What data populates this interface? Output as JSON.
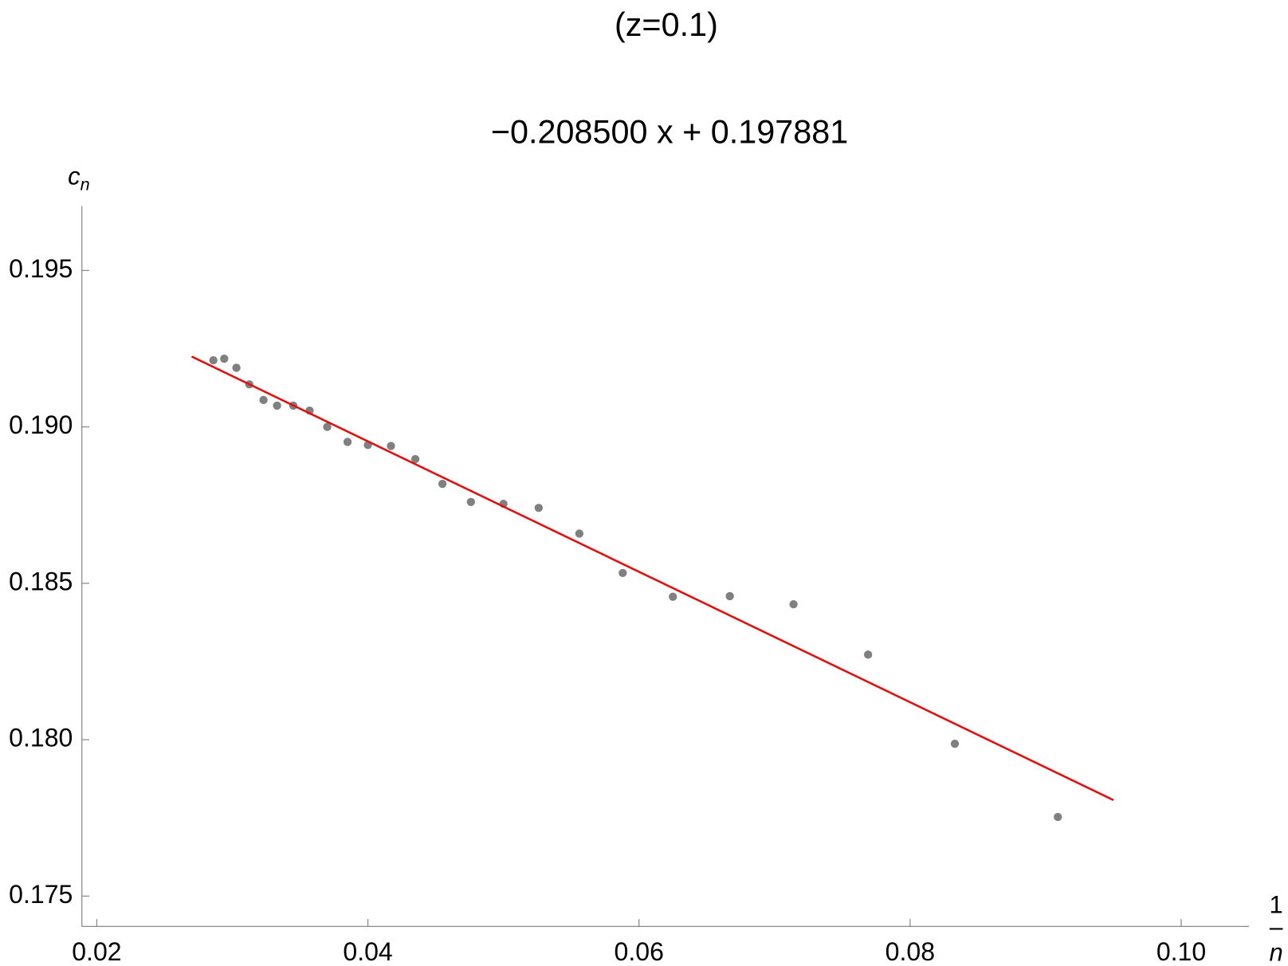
{
  "chart_data": {
    "type": "scatter",
    "title": "(z=0.1)",
    "subtitle": "−0.208500 x + 0.197881",
    "ylabel": {
      "base": "c",
      "sub": "n"
    },
    "xlabel": {
      "numerator": "1",
      "denominator": "n"
    },
    "xlim": [
      0.0189,
      0.105
    ],
    "ylim": [
      0.17403,
      0.19706
    ],
    "xticks": [
      0.02,
      0.04,
      0.06,
      0.08,
      {
        "value": 0.1,
        "label": "0.10"
      }
    ],
    "yticks": [
      0.175,
      {
        "value": 0.18,
        "label": "0.180"
      },
      0.185,
      {
        "value": 0.19,
        "label": "0.190"
      },
      0.195
    ],
    "points": {
      "color": "#808080",
      "x": [
        0.0909,
        0.0833,
        0.0769,
        0.0714,
        0.0667,
        0.0625,
        0.0588,
        0.0556,
        0.0526,
        0.05,
        0.0476,
        0.0455,
        0.0435,
        0.0417,
        0.04,
        0.0385,
        0.037,
        0.0357,
        0.0345,
        0.0333,
        0.0323,
        0.03125,
        0.0303,
        0.0294,
        0.0286
      ],
      "y": [
        0.17753,
        0.17987,
        0.18272,
        0.18433,
        0.18459,
        0.18457,
        0.18533,
        0.18659,
        0.18741,
        0.18754,
        0.1876,
        0.18818,
        0.18897,
        0.18939,
        0.18942,
        0.18952,
        0.19,
        0.19052,
        0.19068,
        0.19068,
        0.19086,
        0.19136,
        0.19189,
        0.19218,
        0.19213
      ]
    },
    "fit": {
      "color": "#e01010",
      "x": [
        0.027,
        0.095
      ],
      "y": [
        0.19225,
        0.17807
      ]
    }
  }
}
